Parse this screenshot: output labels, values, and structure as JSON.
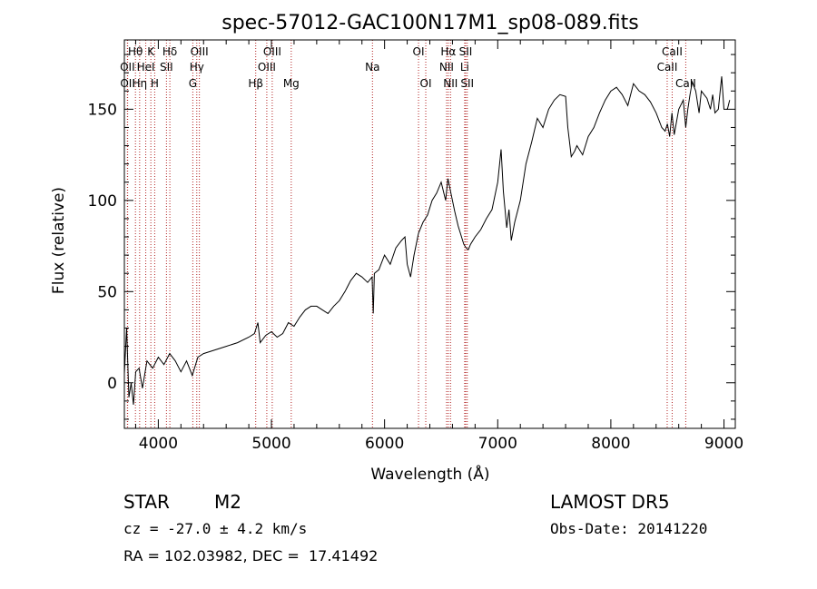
{
  "chart_data": {
    "type": "line",
    "title": "spec-57012-GAC100N17M1_sp08-089.fits",
    "xlabel": "Wavelength (Å)",
    "ylabel": "Flux (relative)",
    "xlim": [
      3700,
      9100
    ],
    "ylim": [
      -25,
      188
    ],
    "xticks": [
      4000,
      5000,
      6000,
      7000,
      8000,
      9000
    ],
    "yticks": [
      0,
      50,
      100,
      150
    ],
    "grid": false,
    "series": [
      {
        "x": [
          3700,
          3720,
          3740,
          3760,
          3780,
          3800,
          3830,
          3860,
          3900,
          3950,
          4000,
          4050,
          4100,
          4150,
          4200,
          4250,
          4300,
          4350,
          4400,
          4500,
          4600,
          4700,
          4800,
          4850,
          4880,
          4900,
          4950,
          5000,
          5050,
          5100,
          5150,
          5200,
          5250,
          5300,
          5350,
          5400,
          5450,
          5500,
          5550,
          5600,
          5650,
          5700,
          5750,
          5800,
          5850,
          5890,
          5900,
          5910,
          5950,
          6000,
          6050,
          6100,
          6150,
          6180,
          6200,
          6230,
          6260,
          6300,
          6340,
          6380,
          6420,
          6460,
          6500,
          6540,
          6560,
          6580,
          6600,
          6620,
          6650,
          6680,
          6700,
          6720,
          6740,
          6760,
          6800,
          6850,
          6900,
          6950,
          7000,
          7030,
          7050,
          7080,
          7100,
          7120,
          7150,
          7200,
          7250,
          7300,
          7350,
          7400,
          7450,
          7500,
          7550,
          7600,
          7620,
          7650,
          7680,
          7700,
          7750,
          7800,
          7850,
          7900,
          7950,
          8000,
          8050,
          8100,
          8150,
          8200,
          8250,
          8300,
          8350,
          8400,
          8450,
          8480,
          8500,
          8520,
          8540,
          8560,
          8600,
          8640,
          8662,
          8680,
          8700,
          8720,
          8750,
          8780,
          8800,
          8850,
          8880,
          8900,
          8920,
          8950,
          8980,
          9000,
          9030,
          9050
        ],
        "y": [
          5,
          30,
          -8,
          0,
          -12,
          6,
          8,
          -3,
          12,
          8,
          14,
          10,
          16,
          12,
          6,
          12,
          4,
          14,
          16,
          18,
          20,
          22,
          25,
          27,
          33,
          22,
          26,
          28,
          25,
          27,
          33,
          31,
          36,
          40,
          42,
          42,
          40,
          38,
          42,
          45,
          50,
          56,
          60,
          58,
          55,
          58,
          38,
          60,
          62,
          70,
          65,
          74,
          78,
          80,
          65,
          58,
          70,
          82,
          88,
          92,
          100,
          104,
          110,
          100,
          112,
          106,
          100,
          94,
          86,
          80,
          76,
          74,
          73,
          76,
          80,
          84,
          90,
          95,
          110,
          128,
          105,
          85,
          95,
          78,
          88,
          100,
          120,
          132,
          145,
          140,
          150,
          155,
          158,
          157,
          140,
          124,
          127,
          130,
          125,
          135,
          140,
          148,
          155,
          160,
          162,
          158,
          152,
          164,
          160,
          158,
          154,
          148,
          140,
          138,
          142,
          135,
          148,
          136,
          150,
          155,
          140,
          150,
          158,
          165,
          160,
          148,
          160,
          156,
          150,
          158,
          148,
          150,
          168,
          150,
          150,
          155
        ]
      }
    ],
    "spectral_lines": [
      {
        "label": "Hθ",
        "wavelength": 3798,
        "row": 1
      },
      {
        "label": "K",
        "wavelength": 3934,
        "row": 1
      },
      {
        "label": "Hδ",
        "wavelength": 4102,
        "row": 1
      },
      {
        "label": "OIII",
        "wavelength": 4363,
        "row": 1
      },
      {
        "label": "OIII",
        "wavelength": 5007,
        "row": 1
      },
      {
        "label": "OI",
        "wavelength": 6300,
        "row": 1
      },
      {
        "label": "Hα",
        "wavelength": 6563,
        "row": 1
      },
      {
        "label": "SII",
        "wavelength": 6717,
        "row": 1
      },
      {
        "label": "CaII",
        "wavelength": 8542,
        "row": 1
      },
      {
        "label": "OII",
        "wavelength": 3727,
        "row": 2
      },
      {
        "label": "HeI",
        "wavelength": 3889,
        "row": 2
      },
      {
        "label": "SII",
        "wavelength": 4072,
        "row": 2
      },
      {
        "label": "Hγ",
        "wavelength": 4340,
        "row": 2
      },
      {
        "label": "OIII",
        "wavelength": 4959,
        "row": 2
      },
      {
        "label": "Na",
        "wavelength": 5893,
        "row": 2
      },
      {
        "label": "NII",
        "wavelength": 6548,
        "row": 2
      },
      {
        "label": "Li",
        "wavelength": 6708,
        "row": 2
      },
      {
        "label": "CaII",
        "wavelength": 8498,
        "row": 2
      },
      {
        "label": "OII",
        "wavelength": 3729,
        "row": 3
      },
      {
        "label": "Hη",
        "wavelength": 3835,
        "row": 3
      },
      {
        "label": "H",
        "wavelength": 3968,
        "row": 3
      },
      {
        "label": "G",
        "wavelength": 4305,
        "row": 3
      },
      {
        "label": "Hβ",
        "wavelength": 4861,
        "row": 3
      },
      {
        "label": "Mg",
        "wavelength": 5175,
        "row": 3
      },
      {
        "label": "OI",
        "wavelength": 6364,
        "row": 3
      },
      {
        "label": "NII",
        "wavelength": 6583,
        "row": 3
      },
      {
        "label": "SII",
        "wavelength": 6731,
        "row": 3
      },
      {
        "label": "CaII",
        "wavelength": 8662,
        "row": 3
      }
    ],
    "colors": {
      "spectrum": "#000000",
      "line_markers": "#b22222"
    }
  },
  "info": {
    "object_class": "STAR",
    "subclass": "M2",
    "survey": "LAMOST DR5",
    "redshift": "cz = -27.0 ± 4.2 km/s",
    "obs_date": "Obs-Date: 20141220",
    "coords": "RA = 102.03982, DEC =  17.41492"
  }
}
